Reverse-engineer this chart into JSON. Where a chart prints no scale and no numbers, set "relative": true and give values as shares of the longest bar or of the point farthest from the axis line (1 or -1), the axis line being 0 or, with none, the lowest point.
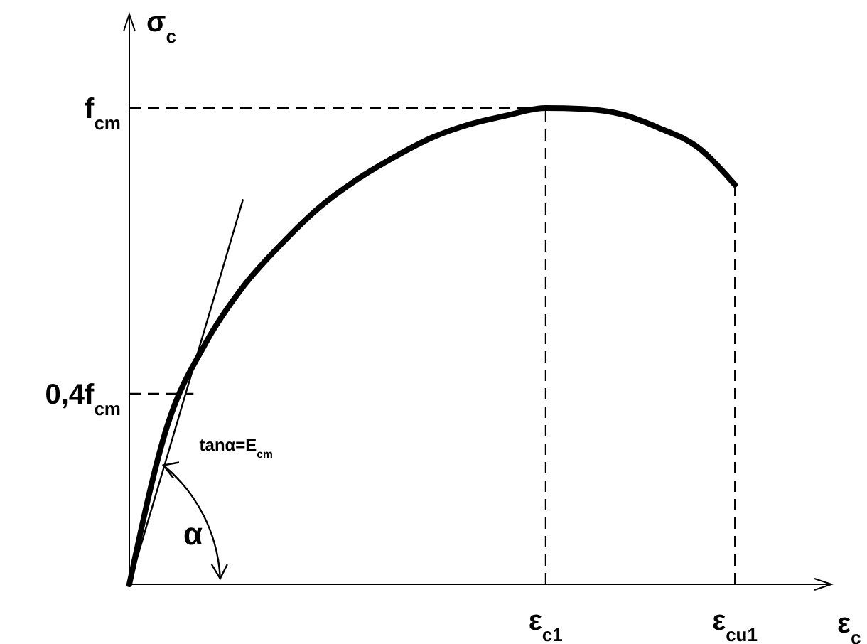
{
  "chart_data": {
    "type": "line",
    "xlabel": "ε$_{c}$",
    "ylabel": "σ$_{c}$",
    "relative": true,
    "categories": [
      null,
      null,
      null,
      null,
      null,
      null,
      null,
      null,
      null,
      null,
      null,
      "ε$_{c1}$",
      null,
      null,
      null,
      null,
      "ε$_{cu1}$"
    ],
    "series": [
      {
        "color": "#000000",
        "line_style": "solid",
        "values": [
          0,
          0.332,
          0.504,
          0.624,
          0.713,
          0.79,
          0.849,
          0.897,
          0.938,
          0.966,
          0.985,
          1,
          0.998,
          0.987,
          0.958,
          0.919,
          0.839
        ]
      },
      {
        "color": "#000000",
        "line_style": "solid",
        "values": [
          0,
          0.269,
          0.538,
          0.807,
          null,
          null,
          null,
          null,
          null,
          null,
          null,
          null,
          null,
          null,
          null,
          null,
          null
        ]
      }
    ],
    "ref_lines": [
      {
        "axis": "y",
        "value": 1,
        "label": "f$_{cm}$",
        "line_style": "dashed"
      },
      {
        "axis": "y",
        "value": 0.4,
        "label": "0,4f$_{cm}$",
        "line_style": "dashed"
      },
      {
        "axis": "x",
        "value": "ε$_{c1}$",
        "line_style": "dashed"
      },
      {
        "axis": "x",
        "value": "ε$_{cu1}$",
        "line_style": "dashed"
      }
    ],
    "annotations": [
      "tanα=E$_{cm}$",
      "α"
    ]
  }
}
